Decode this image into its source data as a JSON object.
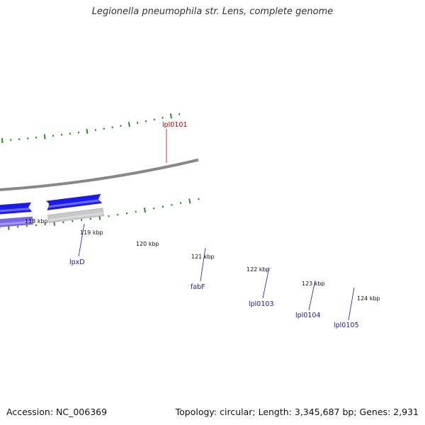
{
  "title": "Legionella pneumophila str. Lens, complete genome",
  "accession": "Accession: NC_006369",
  "summary": "Topology: circular; Length: 3,345,687 bp; Genes: 2,931",
  "colors": {
    "backbone": "#888888",
    "tick": "#2e8b2e",
    "cds_forward": "#1a1aee",
    "highlight": "#ee1111",
    "pink": "#ff1493",
    "olive": "#6b8e23",
    "navy": "#000080",
    "slate": "#7b68ee",
    "gray": "#c8c8c8",
    "khaki": "#bdb76b",
    "label_blue": "#1a1aaa",
    "label_red": "#cc0000"
  },
  "kbp_labels": [
    "118 kbp",
    "119 kbp",
    "120 kbp",
    "121 kbp",
    "122 kbp",
    "123 kbp",
    "124 kbp"
  ],
  "gene_labels": [
    "lpl0101",
    "lpxD",
    "fabF",
    "lpl0103",
    "lpl0104",
    "lpl0105"
  ]
}
